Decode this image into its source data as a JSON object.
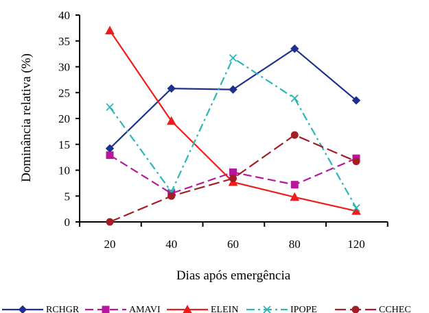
{
  "chart_data": {
    "type": "line",
    "categories": [
      "20",
      "40",
      "60",
      "80",
      "120"
    ],
    "xlabel": "Dias após emergência",
    "ylabel": "Dominância relativa (%)",
    "ylim": [
      0,
      40
    ],
    "yticks": [
      0,
      5,
      10,
      15,
      20,
      25,
      30,
      35,
      40
    ],
    "grid": false,
    "legend_position": "bottom",
    "series": [
      {
        "name": "RCHGR",
        "color": "#1f2f8f",
        "dash": "solid",
        "marker": "diamond",
        "values": [
          14.2,
          25.8,
          25.6,
          33.5,
          23.5
        ]
      },
      {
        "name": "AMAVI",
        "color": "#b5179e",
        "dash": "dash",
        "marker": "square",
        "values": [
          12.9,
          5.5,
          9.6,
          7.2,
          12.3
        ]
      },
      {
        "name": "ELEIN",
        "color": "#ee1c1c",
        "dash": "solid",
        "marker": "triangle",
        "values": [
          37.0,
          19.5,
          7.7,
          4.8,
          2.1
        ]
      },
      {
        "name": "IPOPE",
        "color": "#2bb5b5",
        "dash": "dashdot",
        "marker": "x",
        "values": [
          22.2,
          5.8,
          31.7,
          23.9,
          2.7
        ]
      },
      {
        "name": "CCHEC",
        "color": "#a31d24",
        "dash": "longdash",
        "marker": "circle",
        "values": [
          0.0,
          5.0,
          8.4,
          16.8,
          11.7
        ]
      }
    ]
  }
}
